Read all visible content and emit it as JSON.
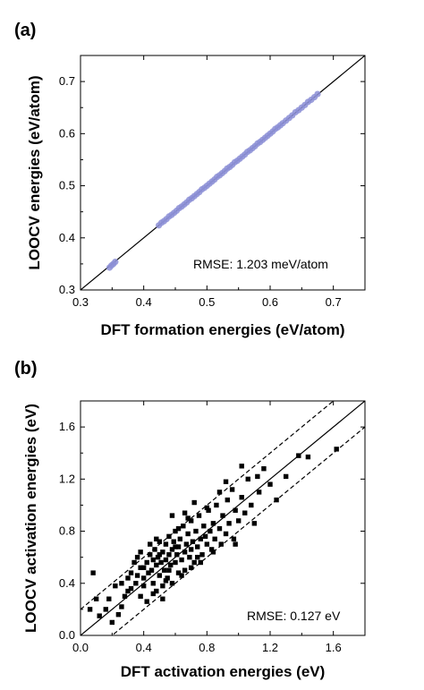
{
  "chart_data": [
    {
      "panel_label": "(a)",
      "type": "scatter",
      "xlabel": "DFT formation energies (eV/atom)",
      "ylabel": "LOOCV energies (eV/atom)",
      "xlim": [
        0.3,
        0.75
      ],
      "ylim": [
        0.3,
        0.75
      ],
      "xticks": [
        "0.3",
        "0.4",
        "0.5",
        "0.6",
        "0.7"
      ],
      "yticks": [
        "0.3",
        "0.4",
        "0.5",
        "0.6",
        "0.7"
      ],
      "annotation": "RMSE: 1.203 meV/atom",
      "grid": false,
      "marker_color": "#8c8fd6",
      "reference_lines": [
        {
          "slope": 1,
          "intercept": 0,
          "style": "solid"
        }
      ],
      "points": [
        [
          0.346,
          0.343
        ],
        [
          0.349,
          0.347
        ],
        [
          0.352,
          0.35
        ],
        [
          0.355,
          0.354
        ],
        [
          0.424,
          0.424
        ],
        [
          0.428,
          0.429
        ],
        [
          0.432,
          0.432
        ],
        [
          0.436,
          0.436
        ],
        [
          0.44,
          0.441
        ],
        [
          0.444,
          0.444
        ],
        [
          0.448,
          0.448
        ],
        [
          0.452,
          0.452
        ],
        [
          0.456,
          0.457
        ],
        [
          0.46,
          0.46
        ],
        [
          0.464,
          0.464
        ],
        [
          0.468,
          0.468
        ],
        [
          0.472,
          0.473
        ],
        [
          0.476,
          0.476
        ],
        [
          0.48,
          0.48
        ],
        [
          0.484,
          0.484
        ],
        [
          0.488,
          0.488
        ],
        [
          0.492,
          0.493
        ],
        [
          0.496,
          0.496
        ],
        [
          0.5,
          0.5
        ],
        [
          0.504,
          0.504
        ],
        [
          0.508,
          0.508
        ],
        [
          0.512,
          0.512
        ],
        [
          0.516,
          0.517
        ],
        [
          0.52,
          0.52
        ],
        [
          0.524,
          0.524
        ],
        [
          0.528,
          0.528
        ],
        [
          0.532,
          0.533
        ],
        [
          0.536,
          0.536
        ],
        [
          0.54,
          0.54
        ],
        [
          0.544,
          0.545
        ],
        [
          0.548,
          0.548
        ],
        [
          0.552,
          0.552
        ],
        [
          0.556,
          0.556
        ],
        [
          0.56,
          0.56
        ],
        [
          0.564,
          0.565
        ],
        [
          0.568,
          0.568
        ],
        [
          0.572,
          0.572
        ],
        [
          0.576,
          0.576
        ],
        [
          0.58,
          0.581
        ],
        [
          0.584,
          0.584
        ],
        [
          0.588,
          0.588
        ],
        [
          0.592,
          0.592
        ],
        [
          0.596,
          0.596
        ],
        [
          0.6,
          0.6
        ],
        [
          0.604,
          0.604
        ],
        [
          0.608,
          0.609
        ],
        [
          0.612,
          0.612
        ],
        [
          0.616,
          0.616
        ],
        [
          0.62,
          0.62
        ],
        [
          0.625,
          0.625
        ],
        [
          0.63,
          0.63
        ],
        [
          0.635,
          0.635
        ],
        [
          0.64,
          0.641
        ],
        [
          0.645,
          0.645
        ],
        [
          0.65,
          0.65
        ],
        [
          0.655,
          0.655
        ],
        [
          0.66,
          0.661
        ],
        [
          0.665,
          0.665
        ],
        [
          0.67,
          0.67
        ],
        [
          0.675,
          0.676
        ]
      ]
    },
    {
      "panel_label": "(b)",
      "type": "scatter",
      "xlabel": "DFT activation energies (eV)",
      "ylabel": "LOOCV activation energies (eV)",
      "xlim": [
        0.0,
        1.8
      ],
      "ylim": [
        0.0,
        1.8
      ],
      "xticks": [
        "0.0",
        "0.4",
        "0.8",
        "1.2",
        "1.6"
      ],
      "yticks": [
        "0.0",
        "0.4",
        "0.8",
        "1.2",
        "1.6"
      ],
      "annotation": "RMSE: 0.127 eV",
      "grid": false,
      "marker_color": "#000000",
      "reference_lines": [
        {
          "slope": 1,
          "intercept": 0,
          "style": "solid"
        },
        {
          "slope": 1,
          "intercept": 0.2,
          "style": "dashed"
        },
        {
          "slope": 1,
          "intercept": -0.2,
          "style": "dashed"
        }
      ],
      "points": [
        [
          0.06,
          0.2
        ],
        [
          0.08,
          0.48
        ],
        [
          0.1,
          0.28
        ],
        [
          0.12,
          0.15
        ],
        [
          0.16,
          0.2
        ],
        [
          0.18,
          0.28
        ],
        [
          0.2,
          0.1
        ],
        [
          0.22,
          0.38
        ],
        [
          0.24,
          0.16
        ],
        [
          0.26,
          0.4
        ],
        [
          0.28,
          0.3
        ],
        [
          0.3,
          0.44
        ],
        [
          0.32,
          0.36
        ],
        [
          0.34,
          0.56
        ],
        [
          0.35,
          0.4
        ],
        [
          0.36,
          0.46
        ],
        [
          0.38,
          0.3
        ],
        [
          0.38,
          0.52
        ],
        [
          0.4,
          0.44
        ],
        [
          0.4,
          0.38
        ],
        [
          0.42,
          0.56
        ],
        [
          0.42,
          0.26
        ],
        [
          0.43,
          0.48
        ],
        [
          0.44,
          0.62
        ],
        [
          0.45,
          0.5
        ],
        [
          0.46,
          0.4
        ],
        [
          0.46,
          0.58
        ],
        [
          0.47,
          0.66
        ],
        [
          0.48,
          0.54
        ],
        [
          0.48,
          0.34
        ],
        [
          0.49,
          0.6
        ],
        [
          0.5,
          0.72
        ],
        [
          0.5,
          0.46
        ],
        [
          0.51,
          0.56
        ],
        [
          0.52,
          0.64
        ],
        [
          0.52,
          0.38
        ],
        [
          0.53,
          0.5
        ],
        [
          0.54,
          0.7
        ],
        [
          0.54,
          0.58
        ],
        [
          0.55,
          0.44
        ],
        [
          0.56,
          0.62
        ],
        [
          0.56,
          0.76
        ],
        [
          0.57,
          0.54
        ],
        [
          0.58,
          0.66
        ],
        [
          0.58,
          0.4
        ],
        [
          0.59,
          0.72
        ],
        [
          0.6,
          0.56
        ],
        [
          0.6,
          0.8
        ],
        [
          0.61,
          0.62
        ],
        [
          0.62,
          0.48
        ],
        [
          0.62,
          0.68
        ],
        [
          0.63,
          0.74
        ],
        [
          0.64,
          0.58
        ],
        [
          0.65,
          0.84
        ],
        [
          0.66,
          0.64
        ],
        [
          0.66,
          0.5
        ],
        [
          0.67,
          0.7
        ],
        [
          0.68,
          0.78
        ],
        [
          0.69,
          0.6
        ],
        [
          0.7,
          0.88
        ],
        [
          0.7,
          0.66
        ],
        [
          0.71,
          0.72
        ],
        [
          0.72,
          0.56
        ],
        [
          0.73,
          0.8
        ],
        [
          0.74,
          0.68
        ],
        [
          0.75,
          0.92
        ],
        [
          0.76,
          0.74
        ],
        [
          0.77,
          0.62
        ],
        [
          0.78,
          0.84
        ],
        [
          0.79,
          0.76
        ],
        [
          0.8,
          0.7
        ],
        [
          0.81,
          0.96
        ],
        [
          0.82,
          0.8
        ],
        [
          0.83,
          0.66
        ],
        [
          0.84,
          0.86
        ],
        [
          0.85,
          0.74
        ],
        [
          0.86,
          1.0
        ],
        [
          0.88,
          0.82
        ],
        [
          0.89,
          0.7
        ],
        [
          0.9,
          0.92
        ],
        [
          0.92,
          0.78
        ],
        [
          0.93,
          1.04
        ],
        [
          0.94,
          0.86
        ],
        [
          0.96,
          1.12
        ],
        [
          0.97,
          0.74
        ],
        [
          0.98,
          0.96
        ],
        [
          1.0,
          0.88
        ],
        [
          1.02,
          1.06
        ],
        [
          1.04,
          0.94
        ],
        [
          1.06,
          1.2
        ],
        [
          1.08,
          1.0
        ],
        [
          1.1,
          0.86
        ],
        [
          1.13,
          1.1
        ],
        [
          1.16,
          1.28
        ],
        [
          1.2,
          1.16
        ],
        [
          1.24,
          1.04
        ],
        [
          1.3,
          1.22
        ],
        [
          1.38,
          1.38
        ],
        [
          1.44,
          1.37
        ],
        [
          1.62,
          1.43
        ],
        [
          0.44,
          0.7
        ],
        [
          0.52,
          0.28
        ],
        [
          0.58,
          0.92
        ],
        [
          0.64,
          0.46
        ],
        [
          0.72,
          1.02
        ],
        [
          0.36,
          0.6
        ],
        [
          0.3,
          0.34
        ],
        [
          0.5,
          0.62
        ],
        [
          0.62,
          0.82
        ],
        [
          0.76,
          0.56
        ],
        [
          0.92,
          1.18
        ],
        [
          0.98,
          0.7
        ],
        [
          0.4,
          0.52
        ],
        [
          0.46,
          0.32
        ],
        [
          0.54,
          0.42
        ],
        [
          0.68,
          0.9
        ],
        [
          0.84,
          0.64
        ],
        [
          1.02,
          1.3
        ],
        [
          0.26,
          0.22
        ],
        [
          0.32,
          0.48
        ],
        [
          0.56,
          0.5
        ],
        [
          0.6,
          0.68
        ],
        [
          0.7,
          0.52
        ],
        [
          0.8,
          0.98
        ],
        [
          0.88,
          1.1
        ],
        [
          1.12,
          1.22
        ],
        [
          0.48,
          0.74
        ],
        [
          0.74,
          0.6
        ],
        [
          0.66,
          0.94
        ],
        [
          0.38,
          0.64
        ]
      ]
    }
  ]
}
